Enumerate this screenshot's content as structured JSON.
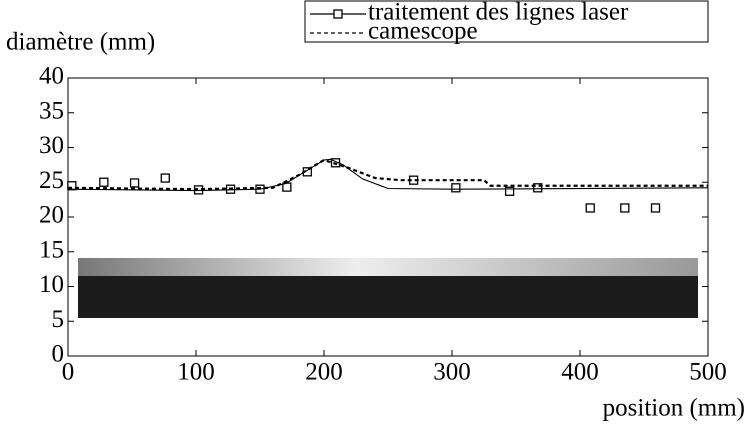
{
  "chart_data": {
    "type": "line",
    "ylabel": "diamètre (mm)",
    "xlabel": "position (mm)",
    "xlim": [
      0,
      500
    ],
    "ylim": [
      0,
      40
    ],
    "xticks": [
      0,
      100,
      200,
      300,
      400,
      500
    ],
    "yticks": [
      0,
      5,
      10,
      15,
      20,
      25,
      30,
      35,
      40
    ],
    "series": [
      {
        "name": "traitement des lignes laser",
        "color": "#000",
        "marker": "square",
        "x": [
          3,
          28,
          52,
          76,
          102,
          127,
          150,
          171,
          187,
          209,
          270,
          303,
          345,
          367,
          408,
          435,
          459
        ],
        "values": [
          24.5,
          25.0,
          24.9,
          25.6,
          23.9,
          24.0,
          24.0,
          24.3,
          26.5,
          27.8,
          25.3,
          24.2,
          23.7,
          24.2,
          21.3,
          21.3,
          21.3
        ]
      },
      {
        "name": "camescope",
        "color": "#000",
        "dash": true,
        "x": [
          0,
          100,
          160,
          180,
          200,
          220,
          240,
          260,
          325,
          330,
          500
        ],
        "values": [
          24.2,
          24.0,
          24.2,
          26.0,
          28.2,
          27.0,
          25.6,
          25.3,
          25.3,
          24.5,
          24.5
        ]
      },
      {
        "color": "#000",
        "x": [
          0,
          100,
          150,
          170,
          185,
          200,
          205,
          215,
          230,
          250,
          300,
          500
        ],
        "values": [
          24.0,
          23.8,
          24.0,
          24.8,
          26.5,
          28.2,
          28.3,
          27.5,
          25.5,
          24.1,
          24.0,
          24.2
        ]
      }
    ]
  }
}
